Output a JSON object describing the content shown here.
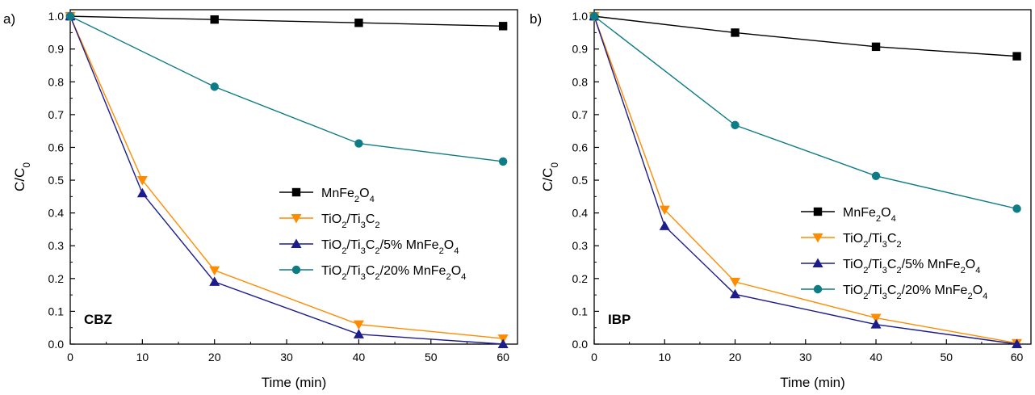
{
  "chart_data": [
    {
      "type": "line",
      "panel_label": "a)",
      "tag": "CBZ",
      "xlabel": "Time (min)",
      "ylabel": "C/C0",
      "xlim": [
        0,
        62
      ],
      "ylim": [
        0,
        1.02
      ],
      "xticks": [
        0,
        10,
        20,
        30,
        40,
        50,
        60
      ],
      "yticks": [
        0.0,
        0.1,
        0.2,
        0.3,
        0.4,
        0.5,
        0.6,
        0.7,
        0.8,
        0.9,
        1.0
      ],
      "grid": false,
      "legend_position": "center-right",
      "x": [
        0,
        10,
        20,
        40,
        60
      ],
      "series": [
        {
          "name": "MnFe2O4",
          "marker": "square",
          "color": "#000000",
          "values": [
            1.0,
            null,
            0.99,
            0.98,
            0.97
          ]
        },
        {
          "name": "TiO2/Ti3C2",
          "marker": "triangle-down",
          "color": "#ff8c00",
          "values": [
            1.0,
            0.5,
            0.225,
            0.06,
            0.017
          ]
        },
        {
          "name": "TiO2/Ti3C2/5% MnFe2O4",
          "marker": "triangle-up",
          "color": "#1c1c8c",
          "values": [
            1.0,
            0.46,
            0.19,
            0.03,
            0.0
          ]
        },
        {
          "name": "TiO2/Ti3C2/20% MnFe2O4",
          "marker": "circle",
          "color": "#0e7c86",
          "values": [
            1.0,
            null,
            0.785,
            0.612,
            0.557
          ]
        }
      ]
    },
    {
      "type": "line",
      "panel_label": "b)",
      "tag": "IBP",
      "xlabel": "Time (min)",
      "ylabel": "C/C0",
      "xlim": [
        0,
        62
      ],
      "ylim": [
        0,
        1.02
      ],
      "xticks": [
        0,
        10,
        20,
        30,
        40,
        50,
        60
      ],
      "yticks": [
        0.0,
        0.1,
        0.2,
        0.3,
        0.4,
        0.5,
        0.6,
        0.7,
        0.8,
        0.9,
        1.0
      ],
      "grid": false,
      "legend_position": "center-right",
      "x": [
        0,
        10,
        20,
        40,
        60
      ],
      "series": [
        {
          "name": "MnFe2O4",
          "marker": "square",
          "color": "#000000",
          "values": [
            1.0,
            null,
            0.95,
            0.907,
            0.878
          ]
        },
        {
          "name": "TiO2/Ti3C2",
          "marker": "triangle-down",
          "color": "#ff8c00",
          "values": [
            1.0,
            0.41,
            0.19,
            0.08,
            0.003
          ]
        },
        {
          "name": "TiO2/Ti3C2/5% MnFe2O4",
          "marker": "triangle-up",
          "color": "#1c1c8c",
          "values": [
            1.0,
            0.36,
            0.152,
            0.06,
            0.0
          ]
        },
        {
          "name": "TiO2/Ti3C2/20% MnFe2O4",
          "marker": "circle",
          "color": "#0e7c86",
          "values": [
            1.0,
            null,
            0.668,
            0.513,
            0.413
          ]
        }
      ]
    }
  ],
  "legend_rich": [
    [
      [
        "MnFe",
        ""
      ],
      [
        "2",
        "sub"
      ],
      [
        "O",
        ""
      ],
      [
        "4",
        "sub"
      ]
    ],
    [
      [
        "TiO",
        ""
      ],
      [
        "2",
        "sub"
      ],
      [
        "/Ti",
        ""
      ],
      [
        "3",
        "sub"
      ],
      [
        "C",
        ""
      ],
      [
        "2",
        "sub"
      ]
    ],
    [
      [
        "TiO",
        ""
      ],
      [
        "2",
        "sub"
      ],
      [
        "/Ti",
        ""
      ],
      [
        "3",
        "sub"
      ],
      [
        "C",
        ""
      ],
      [
        "2",
        "sub"
      ],
      [
        "/5% MnFe",
        ""
      ],
      [
        "2",
        "sub"
      ],
      [
        "O",
        ""
      ],
      [
        "4",
        "sub"
      ]
    ],
    [
      [
        "TiO",
        ""
      ],
      [
        "2",
        "sub"
      ],
      [
        "/Ti",
        ""
      ],
      [
        "3",
        "sub"
      ],
      [
        "C",
        ""
      ],
      [
        "2",
        "sub"
      ],
      [
        "/20% MnFe",
        ""
      ],
      [
        "2",
        "sub"
      ],
      [
        "O",
        ""
      ],
      [
        "4",
        "sub"
      ]
    ]
  ],
  "ylabel_rich": [
    [
      "C/C",
      ""
    ],
    [
      "0",
      "sub"
    ]
  ]
}
